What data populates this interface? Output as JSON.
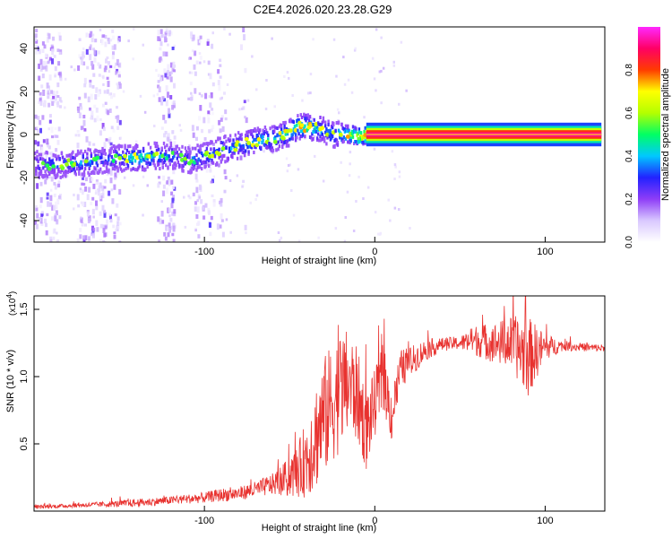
{
  "figure_title": "C2E4.2026.020.23.28.G29",
  "colors": {
    "axis": "#000000",
    "snr_line": "#e8322f",
    "background_dots": "#b9a4f3",
    "cmap": [
      "#ffffff",
      "#d9c8ff",
      "#8e3df7",
      "#2222ff",
      "#00c8ff",
      "#00ff64",
      "#b4ff00",
      "#ffff00",
      "#ff3c00",
      "#ff0064",
      "#ff28ff"
    ]
  },
  "chart_data": [
    {
      "type": "heatmap",
      "title": "C2E4.2026.020.23.28.G29",
      "xlabel": "Height of straight line (km)",
      "ylabel": "Frequency (Hz)",
      "xlim": [
        -200,
        135
      ],
      "ylim": [
        -50,
        50
      ],
      "xticks": [
        -100,
        0,
        100
      ],
      "xtick_labels": [
        "-100",
        "0",
        "100"
      ],
      "yticks": [
        -40,
        -20,
        0,
        20,
        40
      ],
      "ytick_labels": [
        "-40",
        "-20",
        "0",
        "20",
        "40"
      ],
      "colorbar": {
        "label": "Normalized spectral amplitude",
        "range": [
          0,
          1
        ],
        "ticks": [
          0,
          0.2,
          0.4,
          0.6,
          0.8
        ],
        "tick_labels": [
          "0.0",
          "0.2",
          "0.4",
          "0.6",
          "0.8"
        ]
      },
      "ridge": {
        "description": "frequency of peak spectral amplitude vs height",
        "x": [
          -198,
          -185,
          -170,
          -160,
          -150,
          -140,
          -130,
          -120,
          -110,
          -100,
          -90,
          -80,
          -70,
          -60,
          -50,
          -45,
          -40,
          -35,
          -30,
          -25,
          -20,
          -15,
          -10,
          -5,
          0,
          20,
          60,
          100,
          133
        ],
        "freq": [
          -14,
          -14,
          -13,
          -12,
          -11,
          -11,
          -10,
          -10,
          -12,
          -10,
          -7,
          -5,
          -3,
          -2,
          1,
          4,
          3,
          3,
          2,
          0,
          0,
          0,
          -1,
          0,
          0,
          0,
          0,
          0,
          0
        ],
        "amplitude": [
          0.3,
          0.32,
          0.35,
          0.3,
          0.35,
          0.45,
          0.4,
          0.3,
          0.3,
          0.35,
          0.35,
          0.38,
          0.42,
          0.4,
          0.45,
          0.5,
          0.5,
          0.42,
          0.4,
          0.35,
          0.45,
          0.6,
          0.7,
          0.85,
          0.92,
          0.95,
          0.95,
          0.95,
          0.95
        ]
      }
    },
    {
      "type": "line",
      "xlabel": "Height of straight line (km)",
      "ylabel": "SNR (10 * v/v)",
      "y_multiplier": "(x10",
      "y_multiplier_exponent": "4",
      "y_multiplier_close": ")",
      "xlim": [
        -200,
        135
      ],
      "ylim": [
        0,
        1.6
      ],
      "xticks": [
        -100,
        0,
        100
      ],
      "xtick_labels": [
        "-100",
        "0",
        "100"
      ],
      "yticks": [
        0.5,
        1.0,
        1.5
      ],
      "ytick_labels": [
        "0.5",
        "1.0",
        "1.5"
      ],
      "series": [
        {
          "name": "SNR",
          "x": [
            -200,
            -180,
            -160,
            -140,
            -120,
            -100,
            -90,
            -80,
            -70,
            -60,
            -50,
            -45,
            -40,
            -35,
            -30,
            -25,
            -20,
            -15,
            -10,
            -5,
            0,
            5,
            10,
            15,
            20,
            25,
            30,
            40,
            50,
            60,
            70,
            80,
            90,
            100,
            110,
            120,
            135
          ],
          "mean": [
            0.03,
            0.04,
            0.05,
            0.06,
            0.08,
            0.1,
            0.12,
            0.13,
            0.16,
            0.2,
            0.25,
            0.3,
            0.4,
            0.55,
            0.7,
            0.8,
            0.9,
            0.95,
            0.85,
            0.6,
            0.8,
            1.0,
            0.7,
            1.05,
            1.1,
            1.15,
            1.2,
            1.24,
            1.25,
            1.27,
            1.25,
            1.25,
            1.15,
            1.22,
            1.23,
            1.22,
            1.21
          ],
          "amp": [
            0.015,
            0.015,
            0.02,
            0.03,
            0.03,
            0.04,
            0.05,
            0.05,
            0.06,
            0.08,
            0.15,
            0.2,
            0.3,
            0.4,
            0.45,
            0.45,
            0.45,
            0.4,
            0.35,
            0.3,
            0.25,
            0.25,
            0.2,
            0.15,
            0.12,
            0.1,
            0.08,
            0.05,
            0.05,
            0.12,
            0.15,
            0.2,
            0.3,
            0.1,
            0.04,
            0.03,
            0.03
          ]
        }
      ]
    }
  ]
}
